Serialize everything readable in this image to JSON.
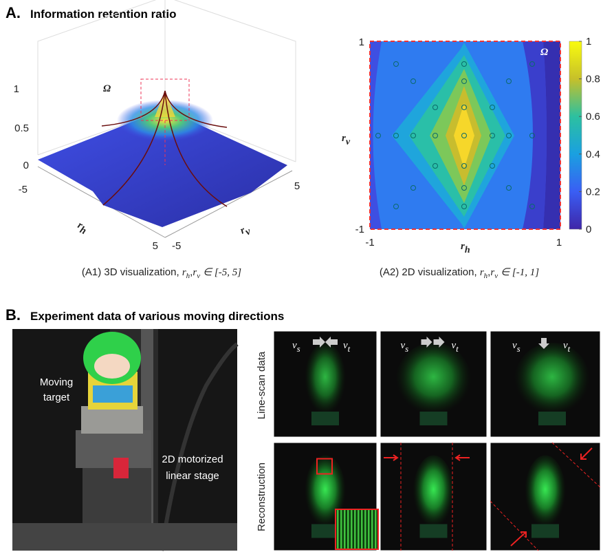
{
  "panel_a": {
    "label": "A.",
    "title": "Information retention ratio",
    "plot_3d": {
      "z_ticks": [
        "1",
        "0.5",
        "0"
      ],
      "omega": "Ω",
      "x_axis": {
        "base": "r",
        "sub": "h"
      },
      "y_axis": {
        "base": "r",
        "sub": "v"
      },
      "x_ticks": [
        "-5",
        "5"
      ],
      "y_ticks": [
        "5",
        "-5"
      ],
      "caption": {
        "text": "(A1) 3D visualization,",
        "math_1": "r",
        "sub_1": "h",
        "sep": ",",
        "math_2": "r",
        "sub_2": "v",
        "range": "∈ [-5, 5]"
      }
    },
    "plot_2d": {
      "y_ticks": [
        "1",
        "-1"
      ],
      "x_ticks": [
        "-1",
        "1"
      ],
      "omega": "Ω",
      "x_axis": {
        "base": "r",
        "sub": "h"
      },
      "y_axis": {
        "base": "r",
        "sub": "v"
      },
      "colorbar_ticks": [
        "1",
        "0.8",
        "0.6",
        "0.4",
        "0.2",
        "0"
      ],
      "caption": {
        "text": "(A2) 2D visualization,",
        "math_1": "r",
        "sub_1": "h",
        "sep": ",",
        "math_2": "r",
        "sub_2": "v",
        "range": "∈ [-1, 1]"
      }
    }
  },
  "panel_b": {
    "label": "B.",
    "title": "Experiment data of various moving directions",
    "photo_labels": {
      "target": [
        "Moving",
        "target"
      ],
      "stage": [
        "2D motorized",
        "linear stage"
      ]
    },
    "row_labels": [
      "Line-scan data",
      "Reconstruction"
    ],
    "velocity": {
      "source": "v",
      "source_sub": "s",
      "target": "v",
      "target_sub": "t"
    }
  }
}
